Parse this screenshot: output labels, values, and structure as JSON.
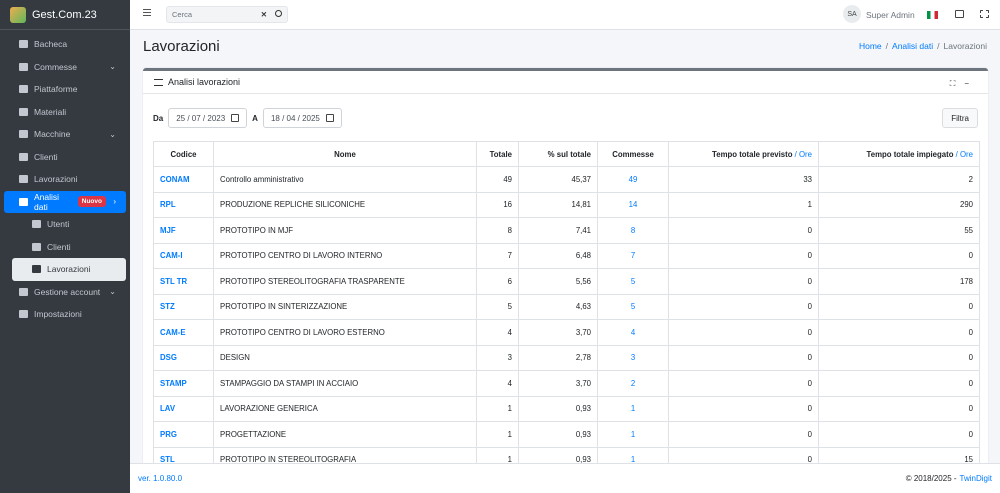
{
  "sidebar": {
    "brand": "Gest.Com.23",
    "menu": [
      {
        "label": "Bacheca"
      },
      {
        "label": "Commesse",
        "expandable": true
      },
      {
        "label": "Piattaforme"
      },
      {
        "label": "Materiali"
      },
      {
        "label": "Macchine",
        "expandable": true
      },
      {
        "label": "Clienti"
      },
      {
        "label": "Lavorazioni"
      },
      {
        "label": "Analisi dati",
        "badge": "Nuovo",
        "active": true,
        "children": [
          {
            "label": "Utenti"
          },
          {
            "label": "Clienti"
          },
          {
            "label": "Lavorazioni",
            "active": true
          }
        ]
      },
      {
        "label": "Gestione account",
        "expandable": true
      },
      {
        "label": "Impostazioni"
      }
    ]
  },
  "topbar": {
    "search_placeholder": "Cerca",
    "avatar": "SA",
    "user": "Super Admin"
  },
  "page": {
    "title": "Lavorazioni",
    "breadcrumb": [
      "Home",
      "Analisi dati",
      "Lavorazioni"
    ]
  },
  "card": {
    "title": "Analisi lavorazioni",
    "filter": {
      "from_label": "Da",
      "from_date": "25 / 07 / 2023",
      "to_label": "A",
      "to_date": "18 / 04 / 2025",
      "button": "Filtra"
    }
  },
  "table": {
    "columns": [
      {
        "label": "Codice"
      },
      {
        "label": "Nome"
      },
      {
        "label": "Totale"
      },
      {
        "label": "% sul totale"
      },
      {
        "label": "Commesse"
      },
      {
        "label": "Tempo totale previsto",
        "unit": "/ Ore"
      },
      {
        "label": "Tempo totale impiegato",
        "unit": "/ Ore"
      }
    ],
    "rows": [
      [
        "CONAM",
        "Controllo amministrativo",
        "49",
        "45,37",
        "49",
        "33",
        "2"
      ],
      [
        "RPL",
        "PRODUZIONE REPLICHE SILICONICHE",
        "16",
        "14,81",
        "14",
        "1",
        "290"
      ],
      [
        "MJF",
        "PROTOTIPO IN MJF",
        "8",
        "7,41",
        "8",
        "0",
        "55"
      ],
      [
        "CAM-I",
        "PROTOTIPO CENTRO DI LAVORO INTERNO",
        "7",
        "6,48",
        "7",
        "0",
        "0"
      ],
      [
        "STL TR",
        "PROTOTIPO STEREOLITOGRAFIA TRASPARENTE",
        "6",
        "5,56",
        "5",
        "0",
        "178"
      ],
      [
        "STZ",
        "PROTOTIPO IN SINTERIZZAZIONE",
        "5",
        "4,63",
        "5",
        "0",
        "0"
      ],
      [
        "CAM-E",
        "PROTOTIPO CENTRO DI LAVORO ESTERNO",
        "4",
        "3,70",
        "4",
        "0",
        "0"
      ],
      [
        "DSG",
        "DESIGN",
        "3",
        "2,78",
        "3",
        "0",
        "0"
      ],
      [
        "STAMP",
        "STAMPAGGIO DA STAMPI IN ACCIAIO",
        "4",
        "3,70",
        "2",
        "0",
        "0"
      ],
      [
        "LAV",
        "LAVORAZIONE GENERICA",
        "1",
        "0,93",
        "1",
        "0",
        "0"
      ],
      [
        "PRG",
        "PROGETTAZIONE",
        "1",
        "0,93",
        "1",
        "0",
        "0"
      ],
      [
        "STL",
        "PROTOTIPO IN STEREOLITOGRAFIA",
        "1",
        "0,93",
        "1",
        "0",
        "15"
      ]
    ]
  },
  "footer": {
    "version": "ver. 1.0.80.0",
    "copyright": "© 2018/2025 -",
    "company": "TwinDigit"
  }
}
